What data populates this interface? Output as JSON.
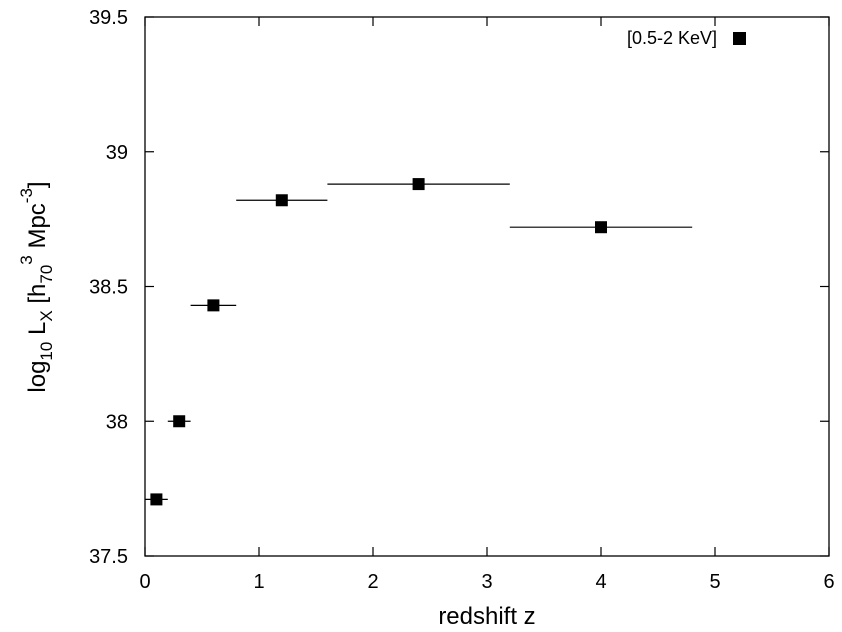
{
  "chart_data": {
    "type": "scatter",
    "xlabel": "redshift z",
    "ylabel": {
      "base": "log",
      "base_sub": "10",
      "mid": " L",
      "mid_sub": "X",
      "open": " [h",
      "unit_sub": "70",
      "unit_sup": "3",
      "unit_mid": " Mpc",
      "unit_sup2": "-3",
      "close": "]"
    },
    "xlim": [
      0,
      6
    ],
    "ylim": [
      37.5,
      39.5
    ],
    "xticks": [
      0,
      1,
      2,
      3,
      4,
      5,
      6
    ],
    "yticks": [
      37.5,
      38,
      38.5,
      39,
      39.5
    ],
    "xtick_labels": [
      "0",
      "1",
      "2",
      "3",
      "4",
      "5",
      "6"
    ],
    "ytick_labels": [
      "37.5",
      "38",
      "38.5",
      "39",
      "39.5"
    ],
    "grid": false,
    "legend_position": "top-right",
    "series": [
      {
        "name": "[0.5-2 KeV]",
        "marker": "square",
        "color": "#000000",
        "points": [
          {
            "x": 0.1,
            "y": 37.71,
            "xerr_low": 0.0,
            "xerr_high": 0.2
          },
          {
            "x": 0.3,
            "y": 38.0,
            "xerr_low": 0.2,
            "xerr_high": 0.4
          },
          {
            "x": 0.6,
            "y": 38.43,
            "xerr_low": 0.4,
            "xerr_high": 0.8
          },
          {
            "x": 1.2,
            "y": 38.82,
            "xerr_low": 0.8,
            "xerr_high": 1.6
          },
          {
            "x": 2.4,
            "y": 38.88,
            "xerr_low": 1.6,
            "xerr_high": 3.2
          },
          {
            "x": 4.0,
            "y": 38.72,
            "xerr_low": 3.2,
            "xerr_high": 4.8
          }
        ]
      }
    ]
  }
}
